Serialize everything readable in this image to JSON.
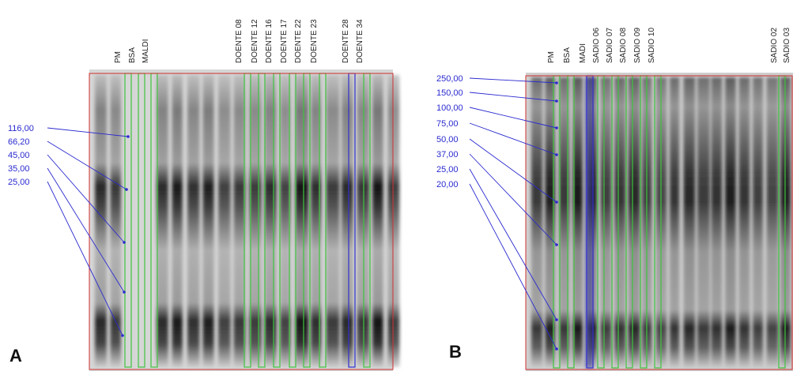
{
  "panel_a": {
    "label": "A",
    "lanes": [
      "PM",
      "BSA",
      "MALDI",
      "DOENTE 08",
      "DOENTE 12",
      "DOENTE 16",
      "DOENTE 17",
      "DOENTE 22",
      "DOENTE 23",
      "DOENTE 28",
      "DOENTE 34"
    ],
    "markers": [
      "116,00",
      "66,20",
      "45,00",
      "35,00",
      "25,00"
    ]
  },
  "panel_b": {
    "label": "B",
    "lanes": [
      "PM",
      "BSA",
      "MADI",
      "SADIO 06",
      "SADIO 07",
      "SADIO 08",
      "SADIO 09",
      "SADIO 10",
      "SADIO 02",
      "SADIO 03"
    ],
    "markers": [
      "250,00",
      "150,00",
      "100,00",
      "75,00",
      "50,00",
      "37,00",
      "25,00",
      "20,00"
    ]
  }
}
